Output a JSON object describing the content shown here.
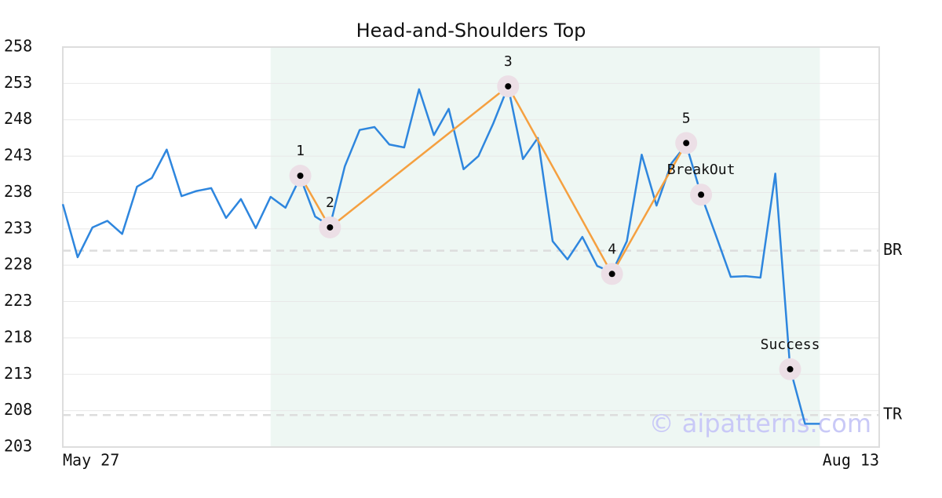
{
  "chart_data": {
    "type": "line",
    "title": "Head-and-Shoulders Top",
    "x": [
      0,
      1,
      2,
      3,
      4,
      5,
      6,
      7,
      8,
      9,
      10,
      11,
      12,
      13,
      14,
      15,
      16,
      17,
      18,
      19,
      20,
      21,
      22,
      23,
      24,
      25,
      26,
      27,
      28,
      29,
      30,
      31,
      32,
      33,
      34,
      35,
      36,
      37,
      38,
      39,
      40,
      41,
      42,
      43,
      44,
      45,
      46,
      47,
      48,
      49,
      50,
      51
    ],
    "series": [
      {
        "color": "#2e86de",
        "values": [
          236.4,
          229.1,
          233.2,
          234.1,
          232.3,
          238.8,
          240.0,
          243.9,
          237.5,
          238.2,
          238.6,
          234.5,
          237.1,
          233.1,
          237.4,
          235.9,
          240.1,
          234.7,
          233.4,
          241.6,
          246.6,
          247.0,
          244.6,
          244.2,
          252.2,
          245.9,
          249.5,
          241.2,
          243.0,
          247.5,
          252.6,
          242.6,
          245.5,
          231.3,
          228.8,
          231.9,
          227.9,
          227.0,
          231.3,
          243.2,
          236.2,
          242.0,
          244.6,
          237.7,
          232.1,
          226.4,
          226.5,
          226.3,
          240.6,
          213.8,
          206.2,
          206.2
        ]
      }
    ],
    "pattern": {
      "color": "#f5a040",
      "points": [
        {
          "label": "1",
          "x": 16,
          "y": 240.3
        },
        {
          "label": "2",
          "x": 18,
          "y": 233.2
        },
        {
          "label": "3",
          "x": 30,
          "y": 252.6
        },
        {
          "label": "4",
          "x": 37,
          "y": 226.8
        },
        {
          "label": "5",
          "x": 42,
          "y": 244.8
        }
      ]
    },
    "signals": [
      {
        "label": "BreakOut",
        "x": 43,
        "y": 237.7
      },
      {
        "label": "Success",
        "x": 49,
        "y": 213.7
      }
    ],
    "hlines": [
      {
        "label": "BR",
        "value": 230.0
      },
      {
        "label": "TR",
        "value": 207.4
      }
    ],
    "highlight": {
      "color": "#eef7f3",
      "x": [
        14,
        51
      ]
    },
    "watermark": "© aipatterns.com",
    "xlim": [
      0,
      55
    ],
    "xticks": [
      {
        "value": 0,
        "label": "May 27"
      },
      {
        "value": 55,
        "label": "Aug 13"
      }
    ],
    "ylim": [
      203,
      258
    ],
    "yticks": [
      203,
      208,
      213,
      218,
      223,
      228,
      233,
      238,
      243,
      248,
      253,
      258
    ],
    "grid": true
  }
}
